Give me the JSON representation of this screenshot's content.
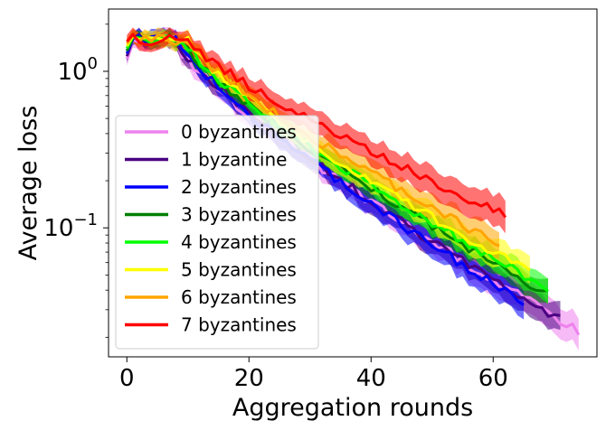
{
  "chart_data": {
    "type": "line",
    "title": "",
    "xlabel": "Aggregation rounds",
    "ylabel": "Average loss",
    "yscale": "log",
    "xlim": [
      -3,
      77
    ],
    "ylim": [
      0.015,
      2.5
    ],
    "xticks": [
      0,
      20,
      40,
      60
    ],
    "yticks": [
      {
        "value": 1,
        "label": "10",
        "exp": "0"
      },
      {
        "value": 0.1,
        "label": "10",
        "exp": "−1"
      }
    ],
    "grid": false,
    "legend_position": "center-left",
    "series": [
      {
        "name": "0 byzantines",
        "color": "#ee82ee",
        "end": 74,
        "final": 0.022,
        "spread": 0.16
      },
      {
        "name": "1 byzantine",
        "color": "#4b0082",
        "end": 71,
        "final": 0.026,
        "spread": 0.14
      },
      {
        "name": "2 byzantines",
        "color": "#0000ff",
        "end": 65,
        "final": 0.033,
        "spread": 0.14
      },
      {
        "name": "3 byzantines",
        "color": "#008000",
        "end": 69,
        "final": 0.038,
        "spread": 0.12
      },
      {
        "name": "4 byzantines",
        "color": "#00ff00",
        "end": 69,
        "final": 0.041,
        "spread": 0.12
      },
      {
        "name": "5 byzantines",
        "color": "#ffff00",
        "end": 66,
        "final": 0.052,
        "spread": 0.14
      },
      {
        "name": "6 byzantines",
        "color": "#ffa500",
        "end": 61,
        "final": 0.078,
        "spread": 0.14
      },
      {
        "name": "7 byzantines",
        "color": "#ff0000",
        "end": 62,
        "final": 0.12,
        "spread": 0.16
      }
    ]
  }
}
